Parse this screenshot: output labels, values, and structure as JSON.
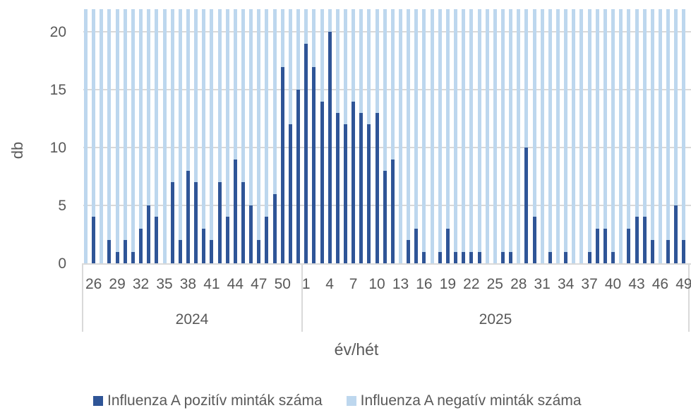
{
  "chart_data": {
    "type": "bar",
    "stacked": true,
    "title": "",
    "xlabel": "év/hét",
    "ylabel": "db",
    "ylim": [
      0,
      22
    ],
    "yticks": [
      0,
      5,
      10,
      15,
      20
    ],
    "grid": true,
    "legend_position": "bottom",
    "groups": [
      {
        "label": "2024",
        "weeks": [
          25,
          26,
          27,
          28,
          29,
          30,
          31,
          32,
          33,
          34,
          35,
          36,
          37,
          38,
          39,
          40,
          41,
          42,
          43,
          44,
          45,
          46,
          47,
          48,
          49,
          50,
          51,
          52
        ]
      },
      {
        "label": "2025",
        "weeks": [
          1,
          2,
          3,
          4,
          5,
          6,
          7,
          8,
          9,
          10,
          11,
          12,
          13,
          14,
          15,
          16,
          17,
          18,
          19,
          20,
          21,
          22,
          23,
          24,
          25,
          26,
          27,
          28,
          29,
          30,
          31,
          32,
          33,
          34,
          35,
          36,
          37,
          38,
          39,
          40,
          41,
          42,
          43,
          44,
          45,
          46,
          47,
          48,
          49
        ]
      }
    ],
    "tick_labels": {
      "2024": [
        "26",
        "29",
        "32",
        "35",
        "38",
        "41",
        "44",
        "47",
        "50"
      ],
      "2025": [
        "1",
        "4",
        "7",
        "10",
        "13",
        "16",
        "19",
        "22",
        "25",
        "28",
        "31",
        "34",
        "37",
        "40",
        "43",
        "46",
        "49"
      ]
    },
    "series": [
      {
        "name": "Influenza A pozitív minták száma",
        "color": "#2f5597",
        "values_2024": [
          0,
          4,
          0,
          2,
          1,
          2,
          1,
          3,
          5,
          4,
          0,
          7,
          2,
          8,
          7,
          3,
          2,
          7,
          4,
          9,
          7,
          5,
          2,
          4,
          6,
          17,
          12,
          15
        ],
        "values_2025": [
          19,
          17,
          14,
          20,
          13,
          12,
          14,
          13,
          12,
          13,
          8,
          9,
          0,
          2,
          3,
          1,
          0,
          1,
          3,
          1,
          1,
          1,
          1,
          0,
          0,
          1,
          1,
          0,
          10,
          4,
          0,
          1,
          0,
          1,
          0,
          0,
          1,
          3,
          3,
          1,
          0,
          3,
          4,
          4,
          2,
          0,
          2,
          5,
          2
        ]
      },
      {
        "name": "Influenza A negatív minták száma",
        "color": "#bdd7ee",
        "note": "stacked on top of positives; exceeds visible axis range (clipped at top)"
      }
    ]
  },
  "axis": {
    "y_title": "db",
    "x_title": "év/hét",
    "y_ticks": [
      "0",
      "5",
      "10",
      "15",
      "20"
    ]
  },
  "legend": {
    "items": [
      {
        "label": "Influenza A pozitív minták száma",
        "color": "#2f5597"
      },
      {
        "label": "Influenza A negatív minták száma",
        "color": "#bdd7ee"
      }
    ]
  }
}
